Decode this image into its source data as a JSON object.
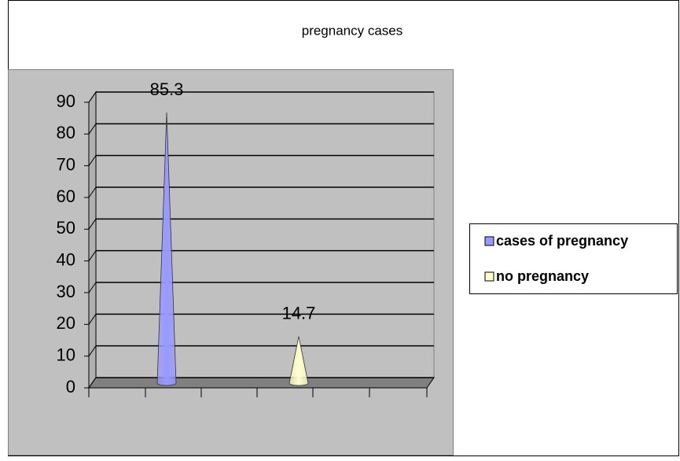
{
  "chart_data": {
    "type": "cone",
    "title": "pregnancy cases",
    "categories": [
      null
    ],
    "series": [
      {
        "name": "cases of pregnancy",
        "color": "#9999ff",
        "values": [
          85.3
        ]
      },
      {
        "name": "no pregnancy",
        "color": "#ffffcc",
        "values": [
          14.7
        ]
      }
    ],
    "ylim": [
      0,
      90
    ],
    "yticks": [
      0,
      10,
      20,
      30,
      40,
      50,
      60,
      70,
      80,
      90
    ],
    "grid": true,
    "legend": "right"
  }
}
